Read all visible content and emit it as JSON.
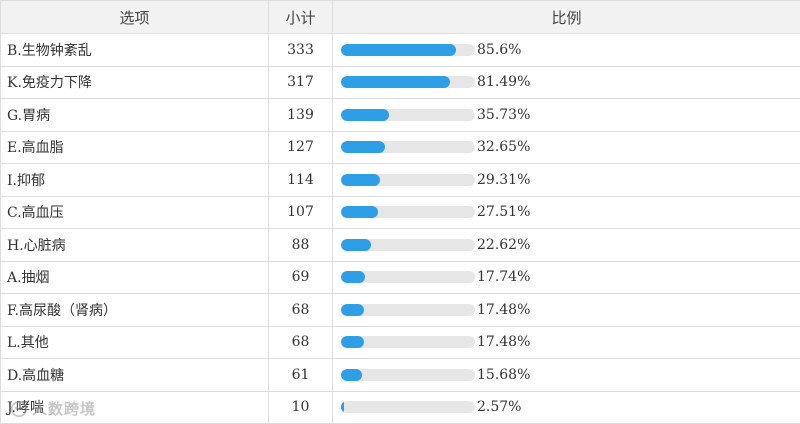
{
  "table": {
    "headers": {
      "option": "选项",
      "count": "小计",
      "ratio": "比例"
    },
    "rows": [
      {
        "option": "B.生物钟紊乱",
        "count": "333",
        "percent_label": "85.6%",
        "percent": 85.6
      },
      {
        "option": "K.免疫力下降",
        "count": "317",
        "percent_label": "81.49%",
        "percent": 81.49
      },
      {
        "option": "G.胃病",
        "count": "139",
        "percent_label": "35.73%",
        "percent": 35.73
      },
      {
        "option": "E.高血脂",
        "count": "127",
        "percent_label": "32.65%",
        "percent": 32.65
      },
      {
        "option": "I.抑郁",
        "count": "114",
        "percent_label": "29.31%",
        "percent": 29.31
      },
      {
        "option": "C.高血压",
        "count": "107",
        "percent_label": "27.51%",
        "percent": 27.51
      },
      {
        "option": "H.心脏病",
        "count": "88",
        "percent_label": "22.62%",
        "percent": 22.62
      },
      {
        "option": "A.抽烟",
        "count": "69",
        "percent_label": "17.74%",
        "percent": 17.74
      },
      {
        "option": "F.高尿酸（肾病）",
        "count": "68",
        "percent_label": "17.48%",
        "percent": 17.48
      },
      {
        "option": "L.其他",
        "count": "68",
        "percent_label": "17.48%",
        "percent": 17.48
      },
      {
        "option": "D.高血糖",
        "count": "61",
        "percent_label": "15.68%",
        "percent": 15.68
      },
      {
        "option": "J.哮喘",
        "count": "10",
        "percent_label": "2.57%",
        "percent": 2.57
      }
    ]
  },
  "watermark": {
    "text": "人数跨境",
    "icon": "watermark-logo-icon"
  },
  "colors": {
    "bar_fill": "#2e9fe6",
    "bar_track": "#e6e6e6",
    "header_bg": "#f2f2f2",
    "border": "#dddddd"
  }
}
